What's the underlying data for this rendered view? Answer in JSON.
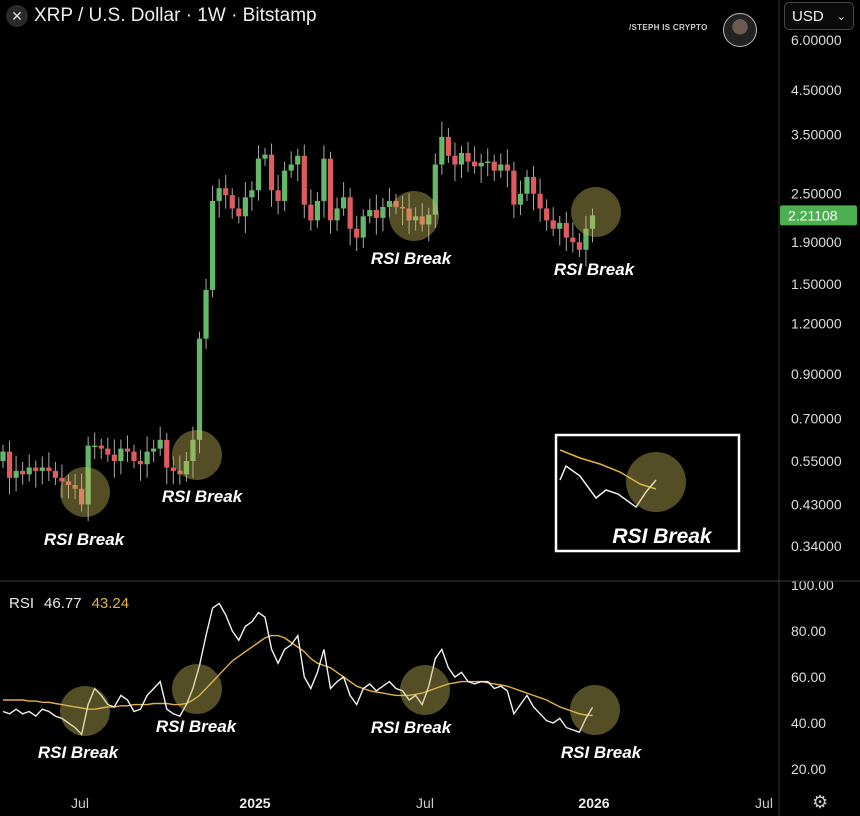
{
  "header": {
    "title": "XRP / U.S. Dollar · 1W · Bitstamp",
    "logo_icon": "xrp-x-icon"
  },
  "watermark": {
    "text": "/STEPH IS CRYPTO"
  },
  "currency": {
    "selected": "USD"
  },
  "rsi_legend": {
    "label": "RSI",
    "value": "46.77",
    "ma_value": "43.24"
  },
  "annotations": {
    "label": "RSI Break",
    "inset_label": "RSI Break"
  },
  "colors": {
    "up": "#64b968",
    "down": "#e05a5e",
    "rsi_line": "#f2f2f2",
    "rsi_ma": "#e3b341",
    "circle": "#c8bb5a",
    "price_badge": "#4caf50"
  },
  "chart_data": [
    {
      "type": "candlestick",
      "title": "XRP / U.S. Dollar · 1W · Bitstamp",
      "yscale": "log",
      "ylim": [
        0.3,
        6.0
      ],
      "y_ticks": [
        "6.00000",
        "4.50000",
        "3.50000",
        "2.50000",
        "1.90000",
        "1.50000",
        "1.20000",
        "0.90000",
        "0.70000",
        "0.55000",
        "0.43000",
        "0.34000"
      ],
      "last_price": "2.21108",
      "x_ticks": [
        "Jul",
        "2025",
        "Jul",
        "2026",
        "Jul"
      ],
      "closes": [
        0.58,
        0.5,
        0.52,
        0.51,
        0.53,
        0.52,
        0.53,
        0.52,
        0.5,
        0.49,
        0.48,
        0.47,
        0.43,
        0.6,
        0.6,
        0.59,
        0.57,
        0.55,
        0.59,
        0.58,
        0.55,
        0.54,
        0.58,
        0.59,
        0.62,
        0.53,
        0.52,
        0.51,
        0.55,
        0.62,
        1.1,
        1.45,
        2.4,
        2.58,
        2.48,
        2.3,
        2.2,
        2.45,
        2.55,
        3.05,
        3.12,
        2.55,
        2.4,
        2.85,
        2.95,
        3.1,
        2.35,
        2.15,
        2.4,
        3.05,
        2.15,
        2.3,
        2.45,
        2.05,
        1.95,
        2.2,
        2.28,
        2.18,
        2.32,
        2.4,
        2.32,
        2.3,
        2.15,
        2.2,
        2.1,
        2.22,
        2.95,
        3.45,
        3.1,
        2.95,
        3.15,
        3.0,
        2.92,
        2.98,
        3.0,
        2.85,
        2.95,
        2.85,
        2.35,
        2.5,
        2.75,
        2.5,
        2.3,
        2.15,
        2.05,
        2.12,
        1.95,
        1.9,
        1.82,
        2.05,
        2.21108
      ]
    },
    {
      "type": "line",
      "title": "RSI",
      "ylim": [
        10,
        100
      ],
      "y_ticks": [
        "100.00",
        "80.00",
        "60.00",
        "40.00",
        "20.00"
      ],
      "series": [
        {
          "name": "RSI",
          "values": [
            45,
            44,
            46,
            44,
            45,
            43,
            46,
            45,
            43,
            42,
            40,
            38,
            35,
            48,
            55,
            52,
            48,
            47,
            52,
            50,
            45,
            46,
            52,
            55,
            58,
            46,
            44,
            43,
            48,
            55,
            65,
            78,
            90,
            92,
            87,
            80,
            76,
            82,
            84,
            88,
            86,
            72,
            66,
            72,
            74,
            78,
            60,
            55,
            62,
            72,
            55,
            58,
            60,
            52,
            48,
            55,
            57,
            54,
            56,
            58,
            55,
            54,
            50,
            52,
            48,
            56,
            68,
            72,
            64,
            60,
            62,
            58,
            57,
            58,
            58,
            55,
            56,
            54,
            44,
            48,
            52,
            47,
            44,
            41,
            40,
            42,
            38,
            37,
            36,
            42,
            46.77
          ]
        },
        {
          "name": "RSI MA",
          "values": [
            50,
            50,
            50,
            50,
            49.5,
            49.5,
            49,
            49,
            48.5,
            48,
            47.5,
            47,
            46.5,
            46,
            46,
            46.5,
            47,
            47,
            47.5,
            47.5,
            48,
            48,
            48,
            48.5,
            48.5,
            48.5,
            48,
            48,
            48.5,
            50,
            52,
            55,
            58,
            61,
            64,
            67,
            69,
            71,
            73,
            75,
            77,
            78,
            78,
            77,
            75,
            73,
            71,
            68,
            66,
            65,
            64,
            62,
            60,
            58,
            56,
            55,
            54,
            53.5,
            53,
            52.5,
            52,
            52,
            52,
            52.5,
            53,
            54,
            55,
            56,
            57,
            57.5,
            58,
            58,
            58,
            58,
            57.5,
            57,
            56.5,
            56,
            55,
            54,
            53,
            52,
            51,
            50,
            48.5,
            47,
            46,
            45,
            44,
            43.5,
            43.24
          ]
        }
      ]
    }
  ]
}
